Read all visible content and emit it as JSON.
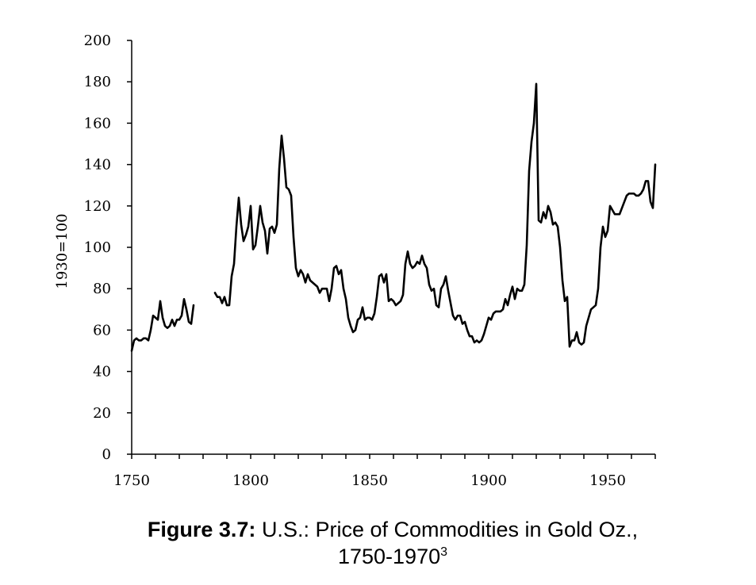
{
  "chart_data": {
    "type": "line",
    "title_bold": "Figure 3.7:",
    "title": "U.S.: Price of Commodities in Gold Oz.,",
    "title_line2": "1750-1970",
    "title_superscript": "3",
    "ylabel": "1930=100",
    "xlabel": "",
    "xlim": [
      1750,
      1970
    ],
    "ylim": [
      0,
      200
    ],
    "x_ticks": [
      1750,
      1800,
      1850,
      1900,
      1950
    ],
    "y_ticks": [
      0,
      20,
      40,
      60,
      80,
      100,
      120,
      140,
      160,
      180,
      200
    ],
    "grid": false,
    "line_color": "#000000",
    "series": [
      {
        "segments": [
          [
            [
              1750,
              50
            ],
            [
              1751,
              55
            ],
            [
              1752,
              56
            ],
            [
              1753,
              55
            ],
            [
              1754,
              55
            ],
            [
              1755,
              56
            ],
            [
              1756,
              56
            ],
            [
              1757,
              55
            ],
            [
              1758,
              60
            ],
            [
              1759,
              67
            ],
            [
              1760,
              66
            ],
            [
              1761,
              65
            ],
            [
              1762,
              74
            ],
            [
              1763,
              66
            ],
            [
              1764,
              62
            ],
            [
              1765,
              61
            ],
            [
              1766,
              62
            ],
            [
              1767,
              65
            ],
            [
              1768,
              62
            ],
            [
              1769,
              65
            ],
            [
              1770,
              65
            ],
            [
              1771,
              67
            ],
            [
              1772,
              75
            ],
            [
              1773,
              70
            ],
            [
              1774,
              64
            ],
            [
              1775,
              63
            ],
            [
              1776,
              72
            ]
          ],
          [
            [
              1785,
              78
            ],
            [
              1786,
              76
            ],
            [
              1787,
              76
            ],
            [
              1788,
              73
            ],
            [
              1789,
              76
            ],
            [
              1790,
              72
            ],
            [
              1791,
              72
            ],
            [
              1792,
              86
            ],
            [
              1793,
              92
            ],
            [
              1794,
              110
            ],
            [
              1795,
              124
            ],
            [
              1796,
              111
            ],
            [
              1797,
              103
            ],
            [
              1798,
              106
            ],
            [
              1799,
              110
            ],
            [
              1800,
              120
            ],
            [
              1801,
              99
            ],
            [
              1802,
              101
            ],
            [
              1803,
              110
            ],
            [
              1804,
              120
            ],
            [
              1805,
              112
            ],
            [
              1806,
              108
            ],
            [
              1807,
              97
            ],
            [
              1808,
              109
            ],
            [
              1809,
              110
            ],
            [
              1810,
              107
            ],
            [
              1811,
              111
            ],
            [
              1812,
              138
            ],
            [
              1813,
              154
            ],
            [
              1814,
              143
            ],
            [
              1815,
              129
            ],
            [
              1816,
              128
            ],
            [
              1817,
              125
            ],
            [
              1818,
              105
            ],
            [
              1819,
              90
            ],
            [
              1820,
              86
            ],
            [
              1821,
              89
            ],
            [
              1822,
              87
            ],
            [
              1823,
              83
            ],
            [
              1824,
              87
            ],
            [
              1825,
              84
            ],
            [
              1826,
              83
            ],
            [
              1827,
              82
            ],
            [
              1828,
              81
            ],
            [
              1829,
              78
            ],
            [
              1830,
              80
            ],
            [
              1831,
              80
            ],
            [
              1832,
              80
            ],
            [
              1833,
              74
            ],
            [
              1834,
              80
            ],
            [
              1835,
              90
            ],
            [
              1836,
              91
            ],
            [
              1837,
              87
            ],
            [
              1838,
              89
            ],
            [
              1839,
              80
            ],
            [
              1840,
              75
            ],
            [
              1841,
              66
            ],
            [
              1842,
              62
            ],
            [
              1843,
              59
            ],
            [
              1844,
              60
            ],
            [
              1845,
              65
            ],
            [
              1846,
              66
            ],
            [
              1847,
              71
            ],
            [
              1848,
              65
            ],
            [
              1849,
              66
            ],
            [
              1850,
              66
            ],
            [
              1851,
              65
            ],
            [
              1852,
              68
            ],
            [
              1853,
              76
            ],
            [
              1854,
              86
            ],
            [
              1855,
              87
            ],
            [
              1856,
              83
            ],
            [
              1857,
              87
            ],
            [
              1858,
              74
            ],
            [
              1859,
              75
            ],
            [
              1860,
              74
            ],
            [
              1861,
              72
            ],
            [
              1862,
              73
            ],
            [
              1863,
              74
            ],
            [
              1864,
              77
            ],
            [
              1865,
              92
            ],
            [
              1866,
              98
            ],
            [
              1867,
              92
            ],
            [
              1868,
              90
            ],
            [
              1869,
              91
            ],
            [
              1870,
              93
            ],
            [
              1871,
              92
            ],
            [
              1872,
              96
            ],
            [
              1873,
              92
            ],
            [
              1874,
              90
            ],
            [
              1875,
              82
            ],
            [
              1876,
              79
            ],
            [
              1877,
              80
            ],
            [
              1878,
              72
            ],
            [
              1879,
              71
            ],
            [
              1880,
              80
            ],
            [
              1881,
              82
            ],
            [
              1882,
              86
            ],
            [
              1883,
              79
            ],
            [
              1884,
              73
            ],
            [
              1885,
              67
            ],
            [
              1886,
              65
            ],
            [
              1887,
              67
            ],
            [
              1888,
              67
            ],
            [
              1889,
              63
            ],
            [
              1890,
              64
            ],
            [
              1891,
              60
            ],
            [
              1892,
              57
            ],
            [
              1893,
              57
            ],
            [
              1894,
              54
            ],
            [
              1895,
              55
            ],
            [
              1896,
              54
            ],
            [
              1897,
              55
            ],
            [
              1898,
              58
            ],
            [
              1899,
              62
            ],
            [
              1900,
              66
            ],
            [
              1901,
              65
            ],
            [
              1902,
              68
            ],
            [
              1903,
              69
            ],
            [
              1904,
              69
            ],
            [
              1905,
              69
            ],
            [
              1906,
              70
            ],
            [
              1907,
              75
            ],
            [
              1908,
              72
            ],
            [
              1909,
              77
            ],
            [
              1910,
              81
            ],
            [
              1911,
              75
            ],
            [
              1912,
              80
            ],
            [
              1913,
              79
            ],
            [
              1914,
              79
            ],
            [
              1915,
              82
            ],
            [
              1916,
              101
            ],
            [
              1917,
              137
            ],
            [
              1918,
              151
            ],
            [
              1919,
              160
            ],
            [
              1920,
              179
            ],
            [
              1921,
              113
            ],
            [
              1922,
              112
            ],
            [
              1923,
              117
            ],
            [
              1924,
              114
            ],
            [
              1925,
              120
            ],
            [
              1926,
              117
            ],
            [
              1927,
              111
            ],
            [
              1928,
              112
            ],
            [
              1929,
              110
            ],
            [
              1930,
              100
            ],
            [
              1931,
              84
            ],
            [
              1932,
              74
            ],
            [
              1933,
              76
            ],
            [
              1934,
              52
            ],
            [
              1935,
              55
            ],
            [
              1936,
              55
            ],
            [
              1937,
              59
            ],
            [
              1938,
              54
            ],
            [
              1939,
              53
            ],
            [
              1940,
              54
            ],
            [
              1941,
              62
            ],
            [
              1942,
              66
            ],
            [
              1943,
              70
            ],
            [
              1944,
              71
            ],
            [
              1945,
              72
            ],
            [
              1946,
              80
            ],
            [
              1947,
              100
            ],
            [
              1948,
              110
            ],
            [
              1949,
              105
            ],
            [
              1950,
              108
            ],
            [
              1951,
              120
            ],
            [
              1952,
              118
            ],
            [
              1953,
              116
            ],
            [
              1954,
              116
            ],
            [
              1955,
              116
            ],
            [
              1956,
              119
            ],
            [
              1957,
              122
            ],
            [
              1958,
              125
            ],
            [
              1959,
              126
            ],
            [
              1960,
              126
            ],
            [
              1961,
              126
            ],
            [
              1962,
              125
            ],
            [
              1963,
              125
            ],
            [
              1964,
              126
            ],
            [
              1965,
              128
            ],
            [
              1966,
              132
            ],
            [
              1967,
              132
            ],
            [
              1968,
              122
            ],
            [
              1969,
              119
            ],
            [
              1970,
              140
            ]
          ]
        ]
      }
    ]
  }
}
